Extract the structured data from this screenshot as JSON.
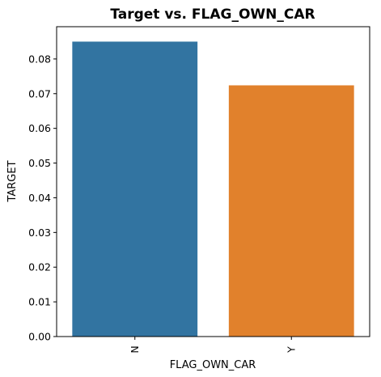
{
  "chart_data": {
    "type": "bar",
    "title": "Target vs. FLAG_OWN_CAR",
    "xlabel": "FLAG_OWN_CAR",
    "ylabel": "TARGET",
    "categories": [
      "N",
      "Y"
    ],
    "values": [
      0.085,
      0.0724
    ],
    "colors": [
      "#3274a1",
      "#e1812c"
    ],
    "ylim": [
      0,
      0.0893
    ],
    "yticks": [
      0.0,
      0.01,
      0.02,
      0.03,
      0.04,
      0.05,
      0.06,
      0.07,
      0.08
    ],
    "ytick_labels": [
      "0.00",
      "0.01",
      "0.02",
      "0.03",
      "0.04",
      "0.05",
      "0.06",
      "0.07",
      "0.08"
    ],
    "grid": false,
    "legend": "none"
  }
}
